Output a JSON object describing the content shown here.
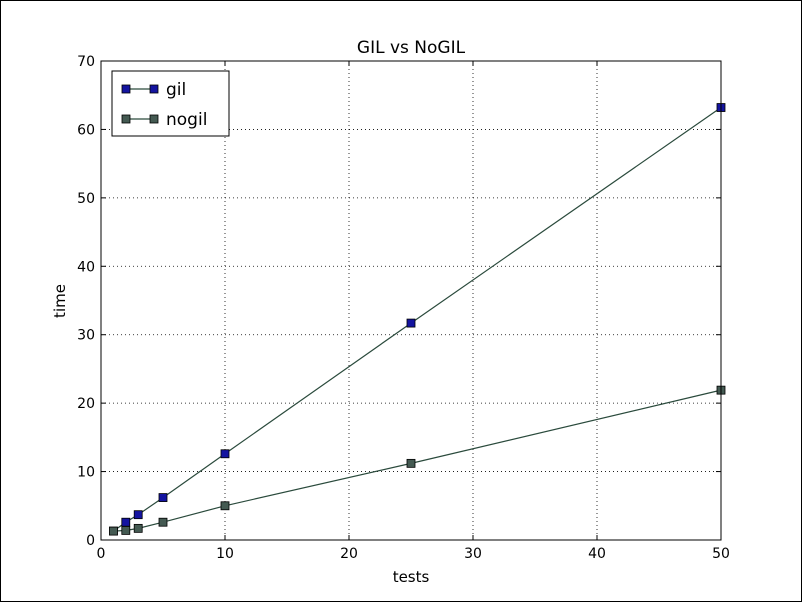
{
  "chart_data": {
    "type": "line",
    "title": "GIL vs NoGIL",
    "xlabel": "tests",
    "ylabel": "time",
    "xlim": [
      0,
      50
    ],
    "ylim": [
      0,
      70
    ],
    "xticks": [
      0,
      10,
      20,
      30,
      40,
      50
    ],
    "yticks": [
      0,
      10,
      20,
      30,
      40,
      50,
      60,
      70
    ],
    "grid": true,
    "legend_position": "top-left",
    "x": [
      1,
      2,
      3,
      5,
      10,
      25,
      50
    ],
    "series": [
      {
        "name": "gil",
        "values": [
          1.3,
          2.6,
          3.7,
          6.2,
          12.6,
          31.7,
          63.2
        ],
        "marker_color": "#1414a0",
        "line_color": "#2a4a3c"
      },
      {
        "name": "nogil",
        "values": [
          1.3,
          1.4,
          1.7,
          2.6,
          5.0,
          11.2,
          21.9
        ],
        "marker_color": "#445a52",
        "line_color": "#2a4a3c"
      }
    ]
  }
}
